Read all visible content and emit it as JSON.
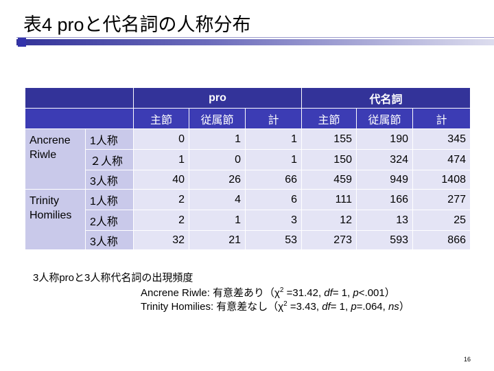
{
  "title": "表4 proと代名詞の人称分布",
  "table": {
    "groups": [
      "pro",
      "代名詞"
    ],
    "columns": [
      "主節",
      "従属節",
      "計",
      "主節",
      "従属節",
      "計"
    ],
    "row_groups": [
      {
        "label": "Ancrene Riwle",
        "rows": [
          {
            "label": "1人称",
            "values": [
              0,
              1,
              1,
              155,
              190,
              345
            ]
          },
          {
            "label": "２人称",
            "values": [
              1,
              0,
              1,
              150,
              324,
              474
            ]
          },
          {
            "label": "3人称",
            "values": [
              40,
              26,
              66,
              459,
              949,
              1408
            ]
          }
        ]
      },
      {
        "label": "Trinity Homilies",
        "rows": [
          {
            "label": "1人称",
            "values": [
              2,
              4,
              6,
              111,
              166,
              277
            ]
          },
          {
            "label": "2人称",
            "values": [
              2,
              1,
              3,
              12,
              13,
              25
            ]
          },
          {
            "label": "3人称",
            "values": [
              32,
              21,
              53,
              273,
              593,
              866
            ]
          }
        ]
      }
    ]
  },
  "notes": [
    "3人称proと3人称代名詞の出現頻度",
    [
      "Ancrene Riwle:  有意差あり（χ",
      "2",
      " =31.42, ",
      "df",
      "= 1, ",
      "p",
      "<.001）"
    ],
    [
      "Trinity Homilies: 有意差なし（χ",
      "2",
      " =3.43, ",
      "df",
      "= 1, ",
      "p",
      "=.064, ",
      "ns",
      "）"
    ]
  ],
  "page_number": "16"
}
